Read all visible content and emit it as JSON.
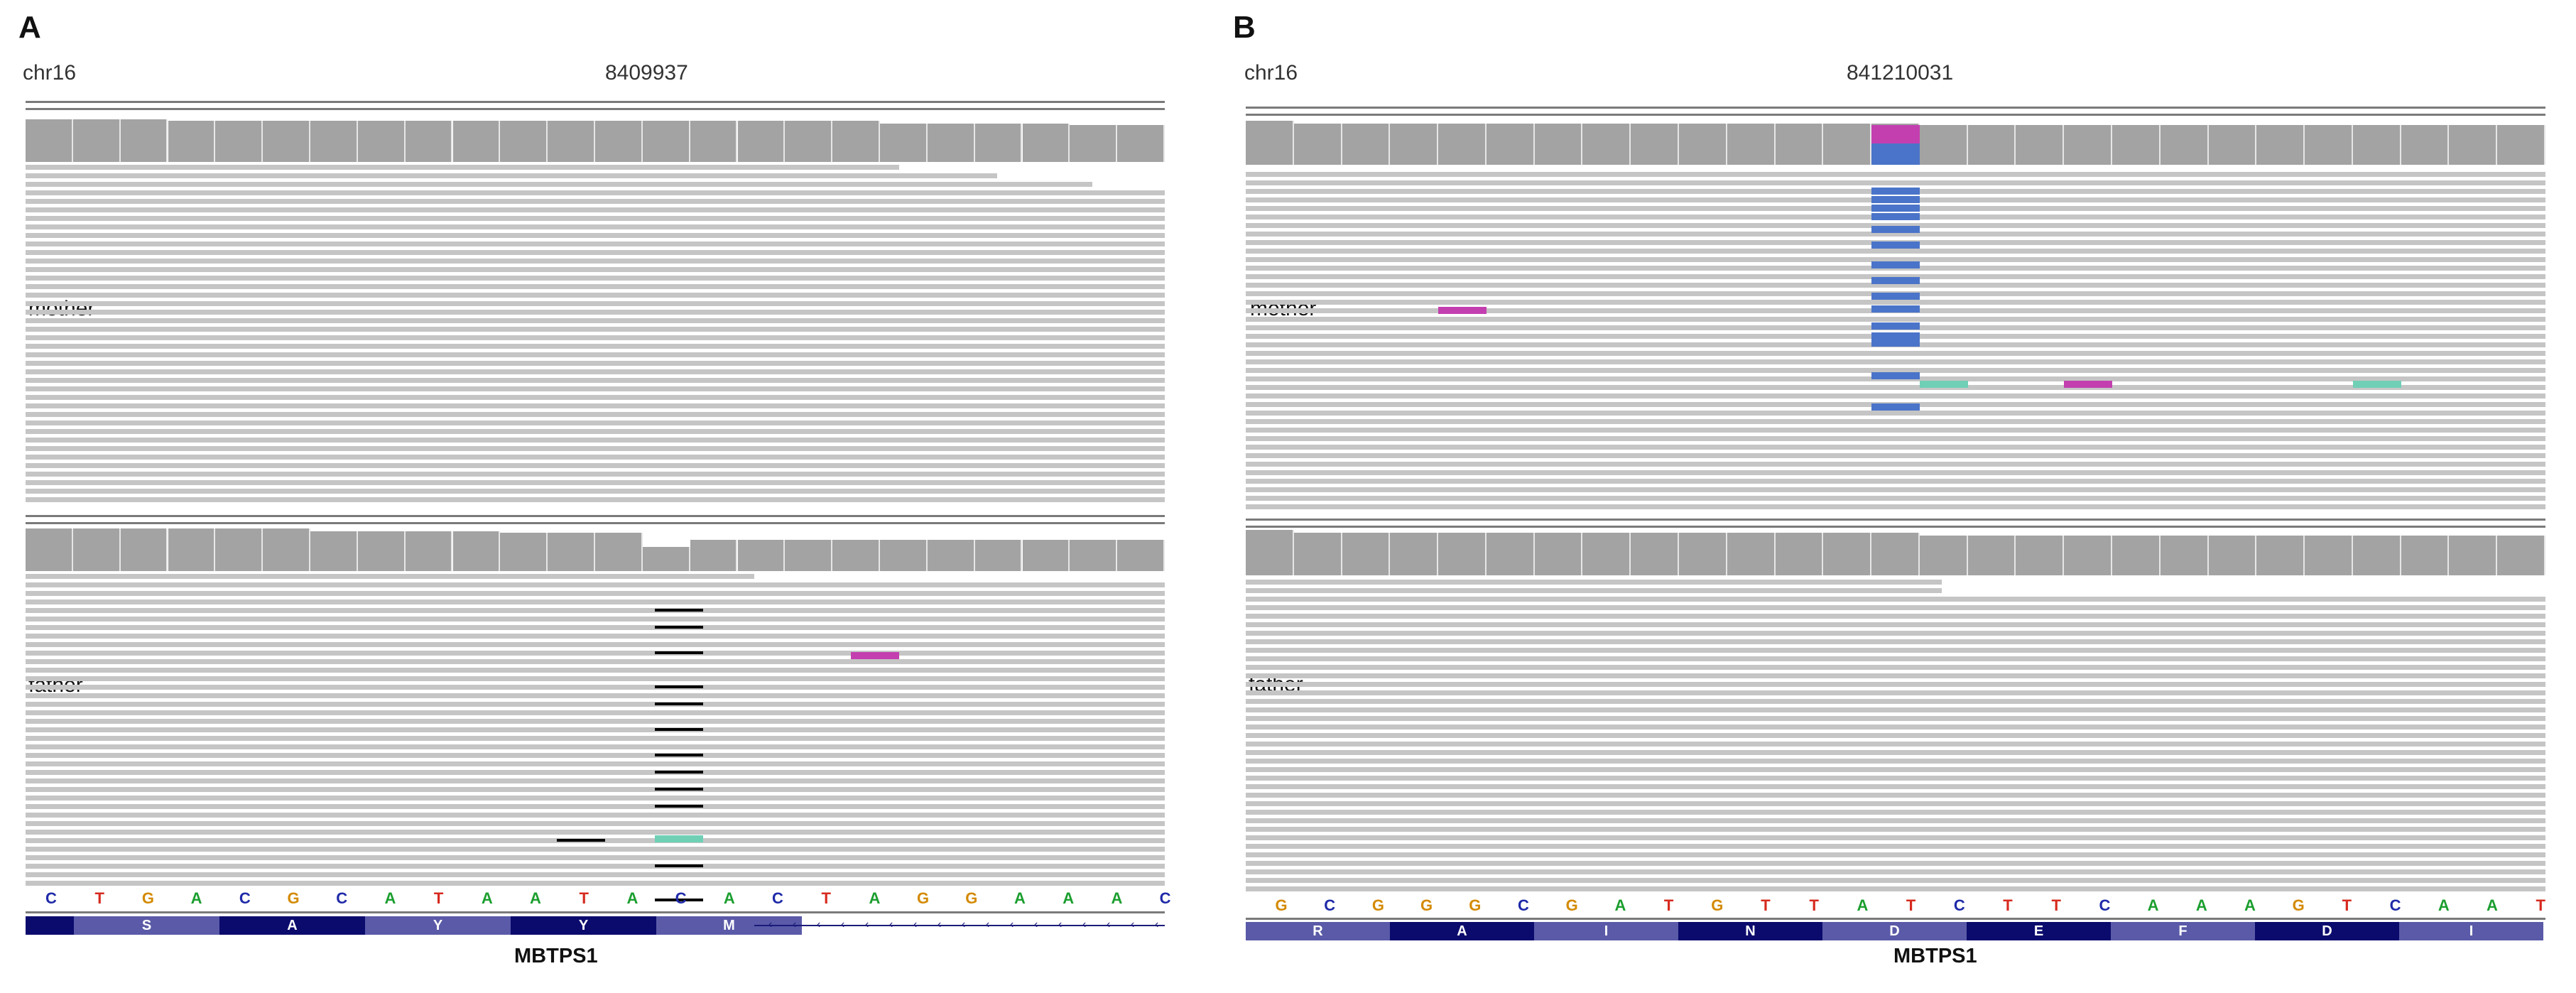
{
  "panels": [
    {
      "letter": "A",
      "chr": "chr16",
      "position": "8409937",
      "tracks": [
        {
          "label": "mother"
        },
        {
          "label": "father"
        }
      ],
      "sequence": [
        "C",
        "T",
        "G",
        "A",
        "C",
        "G",
        "C",
        "A",
        "T",
        "A",
        "A",
        "T",
        "A",
        "C",
        "A",
        "C",
        "T",
        "A",
        "G",
        "G",
        "A",
        "A",
        "A",
        "C"
      ],
      "amino_acids": [
        "S",
        "A",
        "Y",
        "Y",
        "M"
      ],
      "gene": "MBTPS1"
    },
    {
      "letter": "B",
      "chr": "chr16",
      "position": "841210031",
      "tracks": [
        {
          "label": "mother"
        },
        {
          "label": "father"
        }
      ],
      "sequence": [
        "G",
        "C",
        "G",
        "G",
        "G",
        "C",
        "G",
        "A",
        "T",
        "G",
        "T",
        "T",
        "A",
        "T",
        "C",
        "T",
        "T",
        "C",
        "A",
        "A",
        "A",
        "G",
        "T",
        "C",
        "A",
        "A",
        "T"
      ],
      "amino_acids": [
        "R",
        "A",
        "I",
        "N",
        "D",
        "E",
        "F",
        "D",
        "I"
      ],
      "gene": "MBTPS1"
    }
  ],
  "colors": {
    "A": "#1b9e2e",
    "C": "#1f2aa8",
    "G": "#d48a00",
    "T": "#d62a1e",
    "mismatch_A": "#6fd0b6",
    "mismatch_G": "#c33fb0",
    "mismatch_C": "#4a74c9",
    "gene_dark": "#0b0b6e",
    "gene_light": "#5a5aa8"
  }
}
